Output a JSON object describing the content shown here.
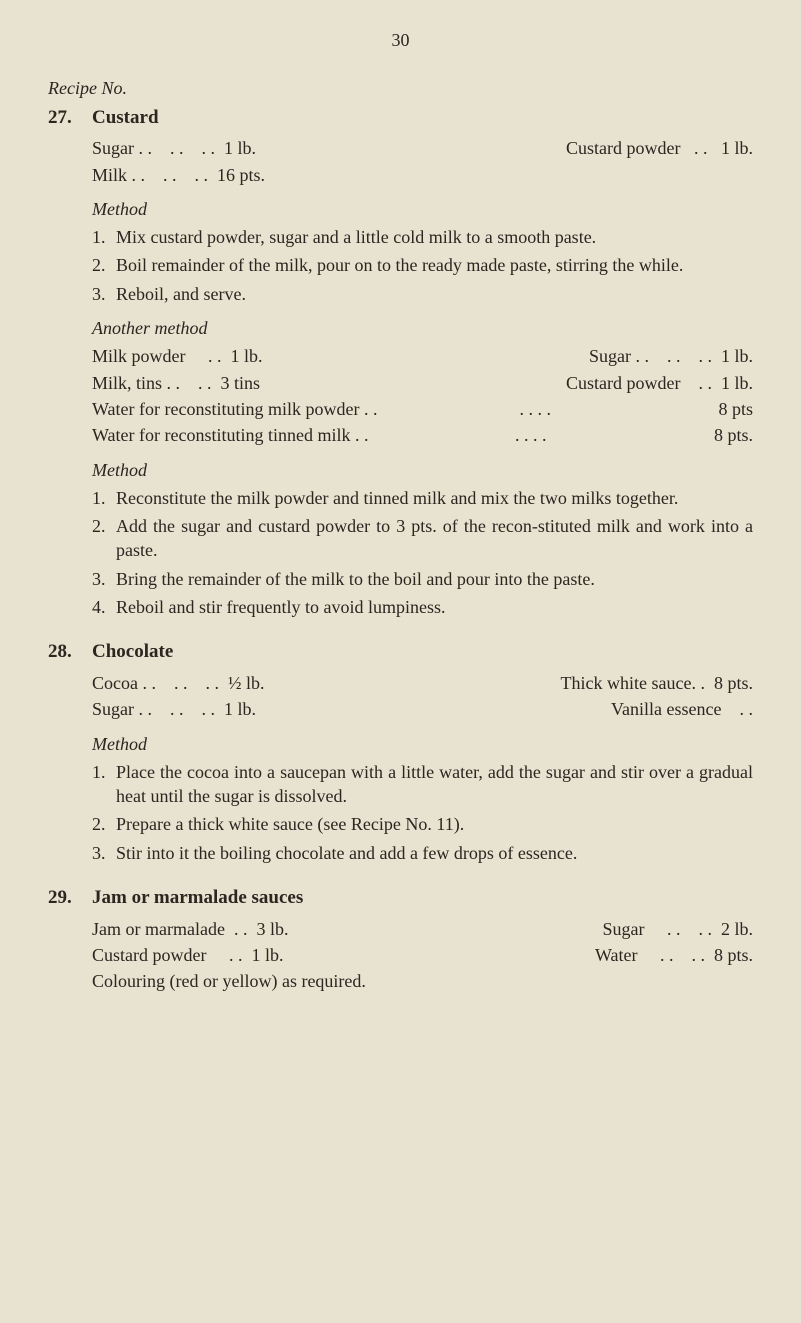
{
  "page_number": "30",
  "header": "Recipe No.",
  "recipes": [
    {
      "num": "27.",
      "name": "Custard",
      "sections": [
        {
          "kind": "ingredients2col",
          "rows": [
            {
              "l_name": "Sugar . .",
              "l_dots": "    . .    . .",
              "l_qty": "1 lb.",
              "r_name": "Custard powder",
              "r_dots": ". .",
              "r_qty": "1 lb."
            },
            {
              "l_name": "Milk  . .",
              "l_dots": "    . .    . .",
              "l_qty": "16 pts.",
              "r_name": "",
              "r_dots": "",
              "r_qty": ""
            }
          ]
        },
        {
          "kind": "heading",
          "style": "italic",
          "text": "Method"
        },
        {
          "kind": "steps",
          "items": [
            {
              "n": "1.",
              "t": "Mix custard powder, sugar and a little cold milk to a smooth paste."
            },
            {
              "n": "2.",
              "t": "Boil remainder of the milk, pour on to the ready made paste, stirring the while."
            },
            {
              "n": "3.",
              "t": "Reboil, and serve."
            }
          ]
        },
        {
          "kind": "heading",
          "style": "italic",
          "text": "Another method"
        },
        {
          "kind": "ingredients2col",
          "rows": [
            {
              "l_name": "Milk powder",
              "l_dots": "     . .",
              "l_qty": "1 lb.",
              "r_name": "Sugar . .",
              "r_dots": "    . .    . .",
              "r_qty": "1 lb."
            },
            {
              "l_name": "Milk, tins   . .",
              "l_dots": "    . .",
              "l_qty": "3 tins",
              "r_name": "Custard powder",
              "r_dots": "    . .",
              "r_qty": "1 lb."
            }
          ]
        },
        {
          "kind": "longrow",
          "rows": [
            {
              "text": "Water for reconstituting milk powder . .",
              "dots": ". .    . .",
              "amt": "8 pts"
            },
            {
              "text": "Water for reconstituting tinned milk    . .",
              "dots": ". .    . .",
              "amt": "8 pts."
            }
          ]
        },
        {
          "kind": "heading",
          "style": "italic",
          "text": "Method"
        },
        {
          "kind": "steps",
          "items": [
            {
              "n": "1.",
              "t": "Reconstitute the milk powder and tinned milk and mix the two milks together."
            },
            {
              "n": "2.",
              "t": "Add the sugar and custard powder to 3 pts. of the recon-stituted milk and work into a paste."
            },
            {
              "n": "3.",
              "t": "Bring the remainder of the milk to the boil and pour into the paste."
            },
            {
              "n": "4.",
              "t": "Reboil and stir frequently to avoid lumpiness."
            }
          ]
        }
      ]
    },
    {
      "num": "28.",
      "name": "Chocolate",
      "sections": [
        {
          "kind": "ingredients2col",
          "rows": [
            {
              "l_name": "Cocoa . .",
              "l_dots": "    . .    . .",
              "l_qty": "½ lb.",
              "r_name": "Thick white sauce. .",
              "r_dots": "",
              "r_qty": "8 pts."
            },
            {
              "l_name": "Sugar . .",
              "l_dots": "    . .    . .",
              "l_qty": "1 lb.",
              "r_name": "Vanilla essence",
              "r_dots": "    . .",
              "r_qty": ""
            }
          ]
        },
        {
          "kind": "heading",
          "style": "italic",
          "text": "Method"
        },
        {
          "kind": "steps",
          "items": [
            {
              "n": "1.",
              "t": "Place the cocoa into a saucepan with a little water, add the sugar and stir over a gradual heat until the sugar is dissolved."
            },
            {
              "n": "2.",
              "t": "Prepare a thick white sauce (see Recipe No. 11)."
            },
            {
              "n": "3.",
              "t": "Stir into it the boiling chocolate and add a few drops of essence."
            }
          ]
        }
      ]
    },
    {
      "num": "29.",
      "name": "Jam or marmalade sauces",
      "sections": [
        {
          "kind": "ingredients2col",
          "rows": [
            {
              "l_name": "Jam or marmalade",
              "l_dots": "  . .",
              "l_qty": "3 lb.",
              "r_name": "Sugar",
              "r_dots": "     . .    . .",
              "r_qty": "2 lb."
            },
            {
              "l_name": "Custard powder",
              "l_dots": "     . .",
              "l_qty": "1 lb.",
              "r_name": "Water",
              "r_dots": "     . .    . .",
              "r_qty": "8 pts."
            }
          ]
        },
        {
          "kind": "plain",
          "text": "Colouring (red or yellow) as required."
        }
      ]
    }
  ]
}
